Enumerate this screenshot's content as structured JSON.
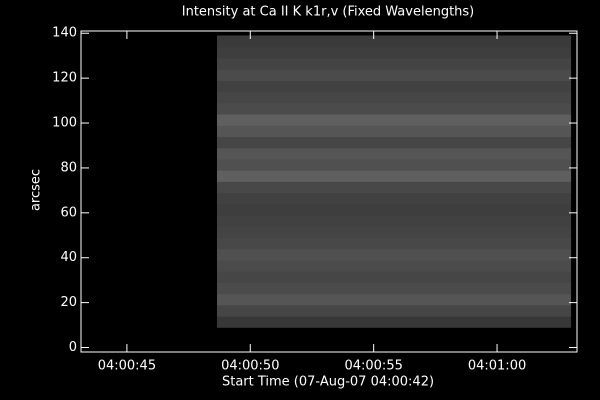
{
  "chart_data": {
    "type": "image",
    "title": "Intensity at Ca II K k1r,v (Fixed Wavelengths)",
    "x_label": "Start Time (07-Aug-07 04:00:42)",
    "y_label": "arcsec",
    "xlim": [
      1.14,
      21.24
    ],
    "xticks": [
      {
        "value": 3,
        "label": "04:00:45"
      },
      {
        "value": 8,
        "label": "04:00:50"
      },
      {
        "value": 13,
        "label": "04:00:55"
      },
      {
        "value": 18,
        "label": "04:01:00"
      }
    ],
    "ylim": [
      -2,
      141
    ],
    "yticks": [
      0,
      20,
      40,
      60,
      80,
      100,
      120,
      140
    ],
    "image_x": [
      6.65,
      21.0
    ],
    "row_edges": [
      9,
      14,
      19,
      24,
      29,
      34,
      39,
      44,
      49,
      54,
      59,
      64,
      69,
      74,
      79,
      84,
      89,
      94,
      99,
      104,
      109,
      114,
      119,
      124,
      129,
      134,
      139
    ],
    "gray_levels": [
      55,
      70,
      85,
      75,
      70,
      75,
      80,
      72,
      68,
      65,
      62,
      65,
      72,
      95,
      80,
      85,
      70,
      85,
      95,
      75,
      70,
      65,
      75,
      68,
      62,
      58
    ]
  }
}
